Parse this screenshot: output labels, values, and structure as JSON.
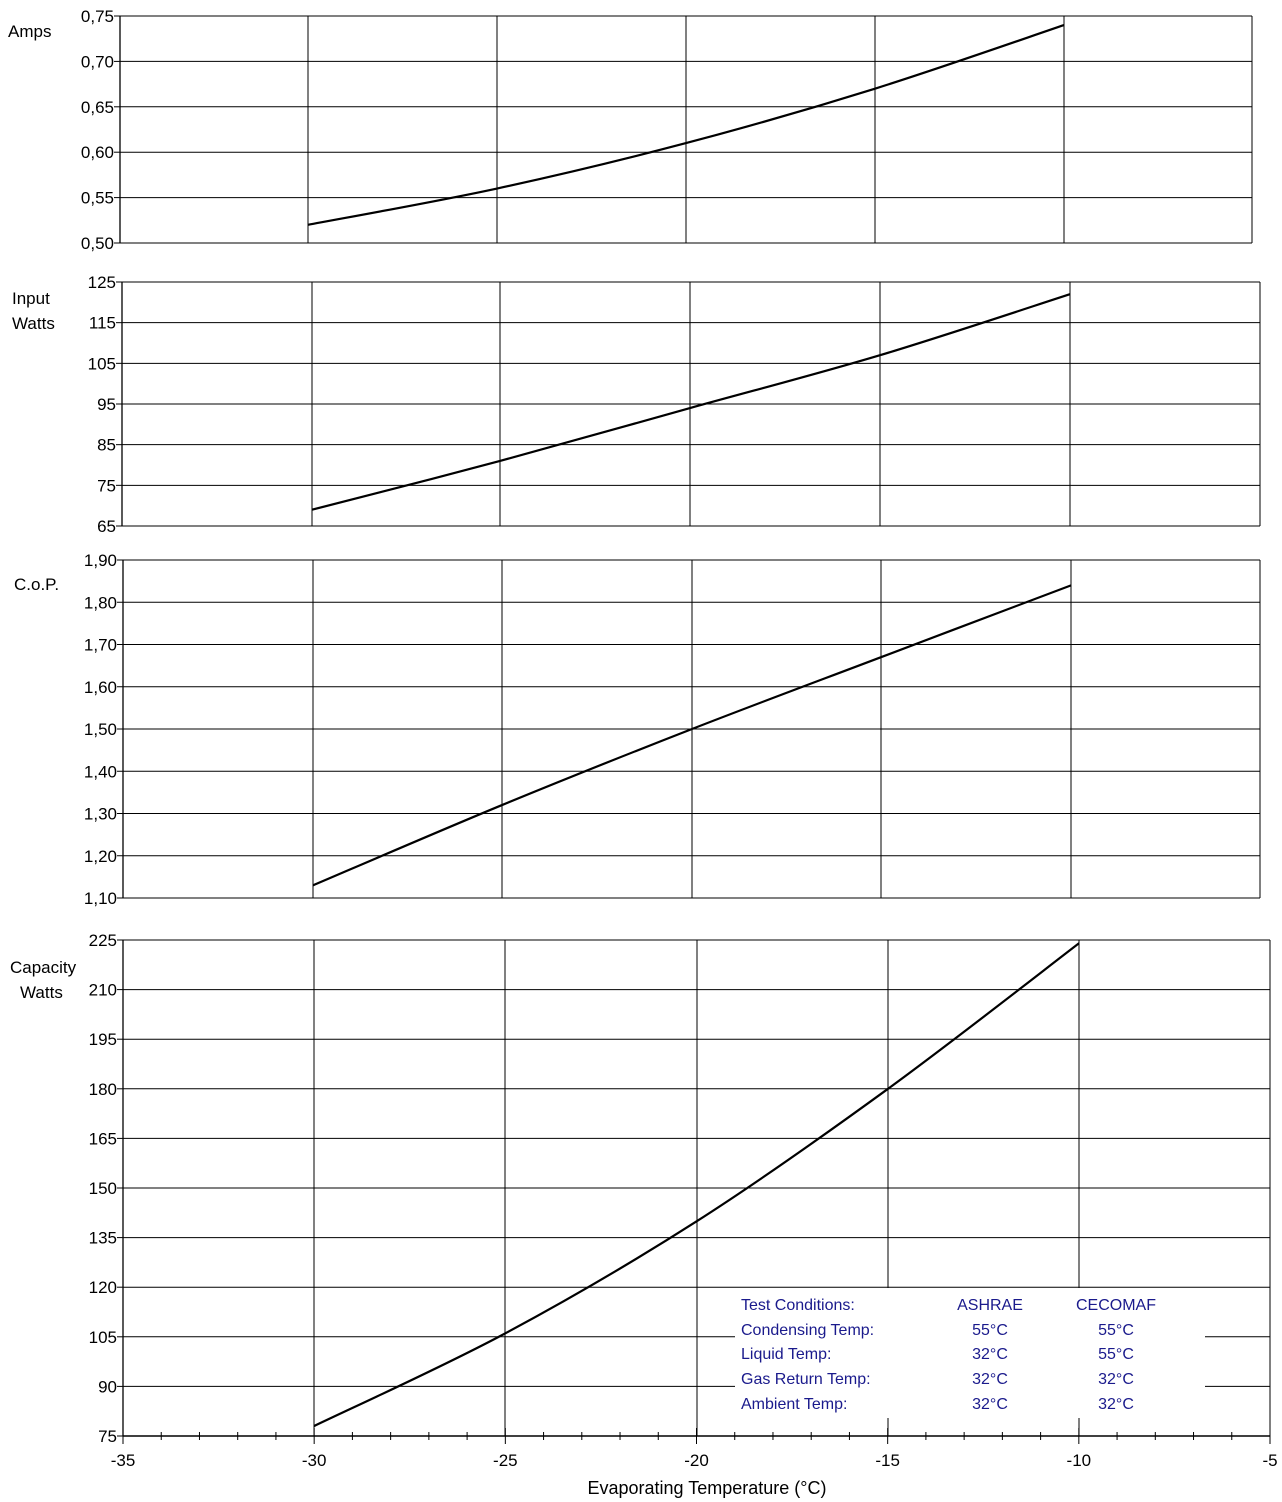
{
  "chart_data": [
    {
      "type": "line",
      "ylabel_lines": [
        "Amps"
      ],
      "xlim": [
        -35,
        -5
      ],
      "ylim": [
        0.5,
        0.75
      ],
      "yticks": [
        "0,50",
        "0,55",
        "0,60",
        "0,65",
        "0,70",
        "0,75"
      ],
      "grid": true,
      "x": [
        -30,
        -25,
        -20,
        -15,
        -10
      ],
      "y": [
        0.52,
        0.56,
        0.61,
        0.67,
        0.74
      ]
    },
    {
      "type": "line",
      "ylabel_lines": [
        "Input",
        "Watts"
      ],
      "xlim": [
        -35,
        -5
      ],
      "ylim": [
        65,
        125
      ],
      "yticks": [
        "65",
        "75",
        "85",
        "95",
        "105",
        "115",
        "125"
      ],
      "grid": true,
      "x": [
        -30,
        -25,
        -20,
        -15,
        -10
      ],
      "y": [
        69,
        81,
        94,
        107,
        122
      ]
    },
    {
      "type": "line",
      "ylabel_lines": [
        "C.o.P."
      ],
      "xlim": [
        -35,
        -5
      ],
      "ylim": [
        1.1,
        1.9
      ],
      "yticks": [
        "1,10",
        "1,20",
        "1,30",
        "1,40",
        "1,50",
        "1,60",
        "1,70",
        "1,80",
        "1,90"
      ],
      "grid": true,
      "x": [
        -30,
        -25,
        -20,
        -15,
        -10
      ],
      "y": [
        1.13,
        1.32,
        1.5,
        1.67,
        1.84
      ]
    },
    {
      "type": "line",
      "ylabel_lines": [
        "Capacity",
        "Watts"
      ],
      "xlabel": "Evaporating Temperature  (°C)",
      "xlim": [
        -35,
        -5
      ],
      "ylim": [
        75,
        225
      ],
      "yticks": [
        "75",
        "90",
        "105",
        "120",
        "135",
        "150",
        "165",
        "180",
        "195",
        "210",
        "225"
      ],
      "xticks": [
        "-35",
        "-30",
        "-25",
        "-20",
        "-15",
        "-10",
        "-5"
      ],
      "grid": true,
      "x": [
        -30,
        -25,
        -20,
        -15,
        -10
      ],
      "y": [
        78,
        106,
        140,
        180,
        224
      ]
    }
  ],
  "test_conditions": {
    "header": [
      "Test Conditions:",
      "ASHRAE",
      "CECOMAF"
    ],
    "rows": [
      [
        "Condensing Temp:",
        "55°C",
        "55°C"
      ],
      [
        "Liquid Temp:",
        "32°C",
        "55°C"
      ],
      [
        "Gas Return Temp:",
        "32°C",
        "32°C"
      ],
      [
        "Ambient Temp:",
        "32°C",
        "32°C"
      ]
    ]
  },
  "colors": {
    "line": "#000000",
    "grid": "#000000",
    "conditions_text": "#1a1a8c"
  }
}
